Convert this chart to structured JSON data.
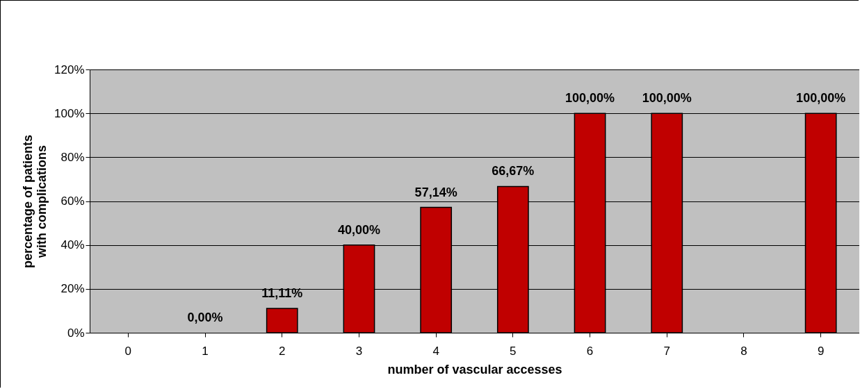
{
  "chart_data": {
    "type": "bar",
    "xlabel": "number of vascular accesses",
    "ylabel": "percentage of patients with complications",
    "categories": [
      "0",
      "1",
      "2",
      "3",
      "4",
      "5",
      "6",
      "7",
      "8",
      "9"
    ],
    "values": [
      null,
      0,
      11.11,
      40,
      57.14,
      66.67,
      100,
      100,
      null,
      100
    ],
    "value_labels": [
      null,
      "0,00%",
      "11,11%",
      "40,00%",
      "57,14%",
      "66,67%",
      "100,00%",
      "100,00%",
      null,
      "100,00%"
    ],
    "color": "#c00000",
    "ylim": [
      0,
      120
    ],
    "yticks": [
      {
        "value": 0,
        "label": "0%"
      },
      {
        "value": 20,
        "label": "20%"
      },
      {
        "value": 40,
        "label": "40%"
      },
      {
        "value": 60,
        "label": "60%"
      },
      {
        "value": 80,
        "label": "80%"
      },
      {
        "value": 100,
        "label": "100%"
      },
      {
        "value": 120,
        "label": "120%"
      }
    ],
    "grid": "y"
  }
}
